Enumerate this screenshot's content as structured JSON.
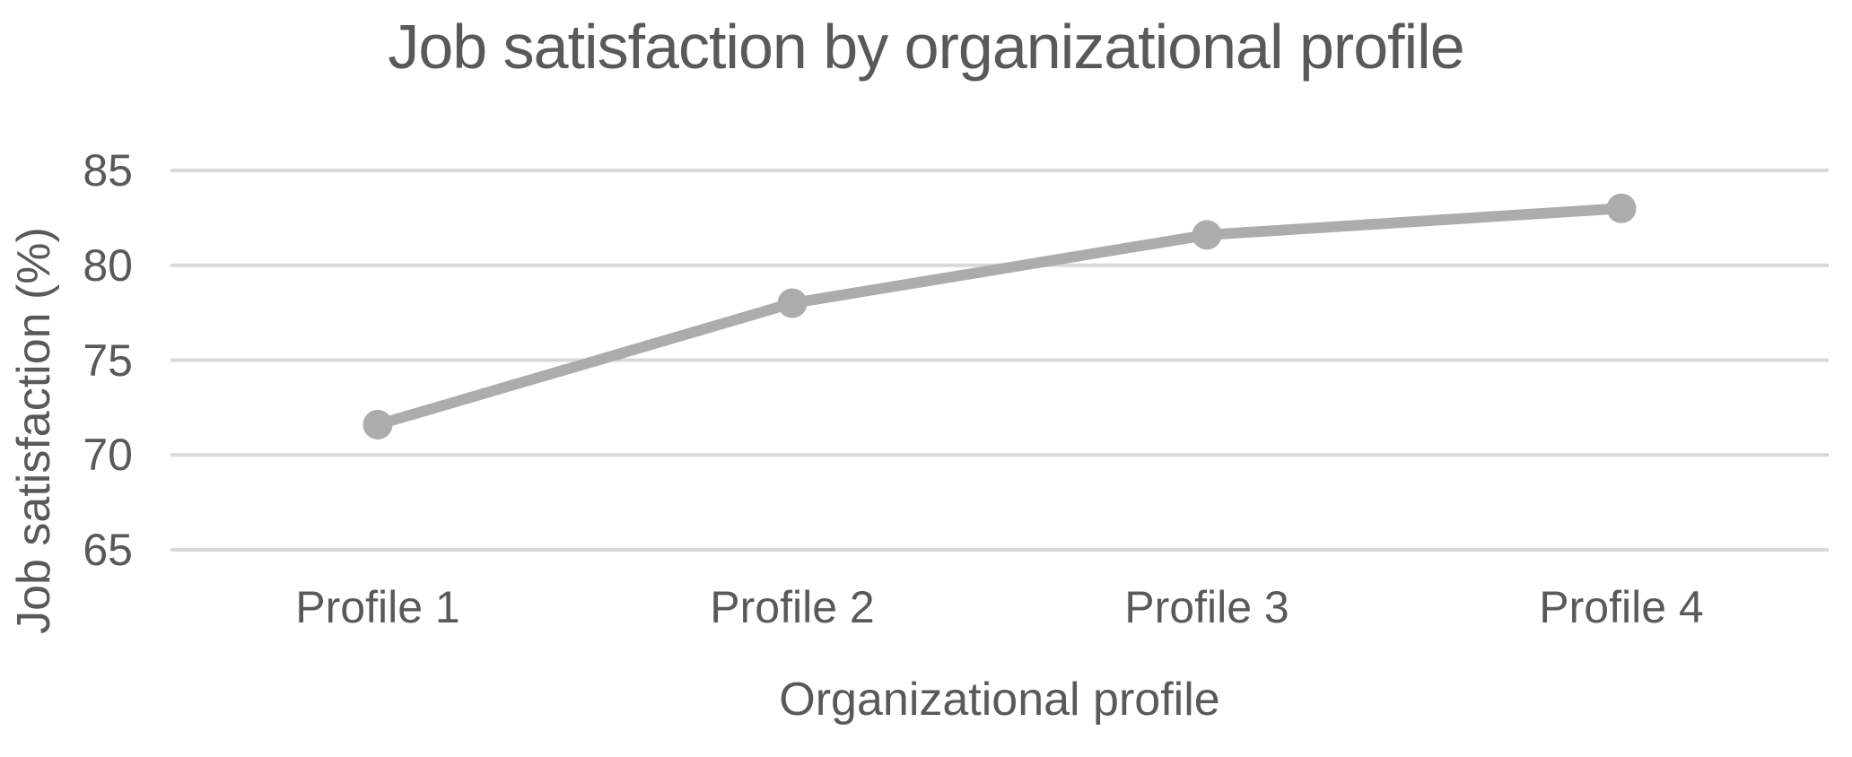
{
  "chart_data": {
    "type": "line",
    "title": "Job satisfaction by organizational profile",
    "xlabel": "Organizational profile",
    "ylabel": "Job satisfaction (%)",
    "categories": [
      "Profile 1",
      "Profile 2",
      "Profile 3",
      "Profile 4"
    ],
    "series": [
      {
        "name": "Job satisfaction",
        "values": [
          71.6,
          78.0,
          81.6,
          83.0
        ]
      }
    ],
    "ylim": [
      65,
      85
    ],
    "yticks": [
      65,
      70,
      75,
      80,
      85
    ],
    "grid": "horizontal-only",
    "legend": "none",
    "marker": "circle",
    "colors": {
      "series_line": "#ACACAC",
      "series_marker": "#ACACAC",
      "gridline": "#D9D9D9",
      "text": "#595959"
    }
  }
}
